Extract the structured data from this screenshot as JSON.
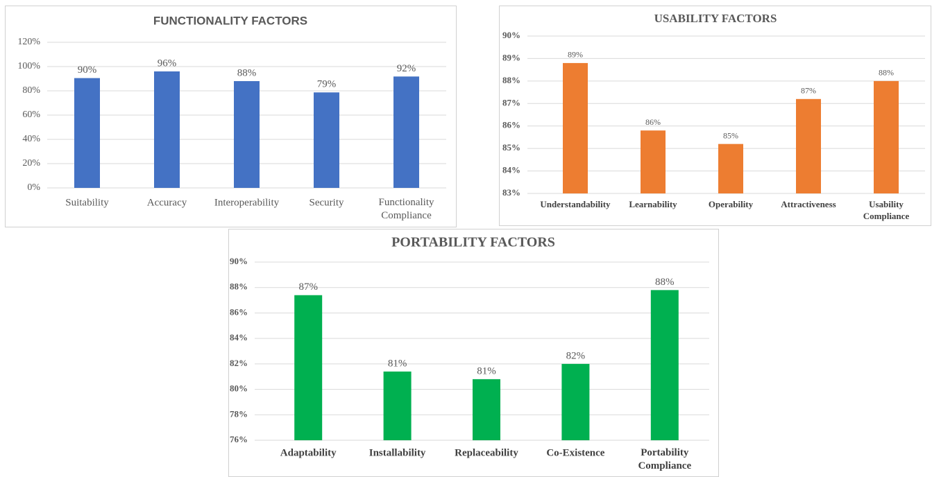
{
  "chart_data": [
    {
      "type": "bar",
      "title": "FUNCTIONALITY FACTORS",
      "categories": [
        "Suitability",
        "Accuracy",
        "Interoperability",
        "Security",
        "Functionality Compliance"
      ],
      "values": [
        90.5,
        96,
        88,
        78.7,
        91.8
      ],
      "value_labels": [
        "90%",
        "96%",
        "88%",
        "79%",
        "92%"
      ],
      "color": "#4472c4",
      "ylim": [
        0,
        120
      ],
      "yticks": [
        {
          "value": 0,
          "label": "0%"
        },
        {
          "value": 20,
          "label": "20%"
        },
        {
          "value": 40,
          "label": "40%"
        },
        {
          "value": 60,
          "label": "60%"
        },
        {
          "value": 80,
          "label": "80%"
        },
        {
          "value": 100,
          "label": "100%"
        },
        {
          "value": 120,
          "label": "120%"
        }
      ],
      "grid": true
    },
    {
      "type": "bar",
      "title": "USABILITY FACTORS",
      "categories": [
        "Understandability",
        "Learnability",
        "Operability",
        "Attractiveness",
        "Usability Compliance"
      ],
      "values": [
        88.8,
        85.8,
        85.2,
        87.2,
        88.0
      ],
      "value_labels": [
        "89%",
        "86%",
        "85%",
        "87%",
        "88%"
      ],
      "color": "#ed7d31",
      "ylim": [
        83,
        90
      ],
      "yticks": [
        {
          "value": 83,
          "label": "83%"
        },
        {
          "value": 84,
          "label": "84%"
        },
        {
          "value": 85,
          "label": "85%"
        },
        {
          "value": 86,
          "label": "86%"
        },
        {
          "value": 87,
          "label": "87%"
        },
        {
          "value": 88,
          "label": "88%"
        },
        {
          "value": 89,
          "label": "89%"
        },
        {
          "value": 90,
          "label": "90%"
        }
      ],
      "grid": true
    },
    {
      "type": "bar",
      "title": "PORTABILITY FACTORS",
      "categories": [
        "Adaptability",
        "Installability",
        "Replaceability",
        "Co-Existence",
        "Portability Compliance"
      ],
      "values": [
        87.4,
        81.4,
        80.8,
        82.0,
        87.8
      ],
      "value_labels": [
        "87%",
        "81%",
        "81%",
        "82%",
        "88%"
      ],
      "color": "#00b050",
      "ylim": [
        76,
        90
      ],
      "yticks": [
        {
          "value": 76,
          "label": "76%"
        },
        {
          "value": 78,
          "label": "78%"
        },
        {
          "value": 80,
          "label": "80%"
        },
        {
          "value": 82,
          "label": "82%"
        },
        {
          "value": 84,
          "label": "84%"
        },
        {
          "value": 86,
          "label": "86%"
        },
        {
          "value": 88,
          "label": "88%"
        },
        {
          "value": 90,
          "label": "90%"
        }
      ],
      "grid": true
    }
  ]
}
